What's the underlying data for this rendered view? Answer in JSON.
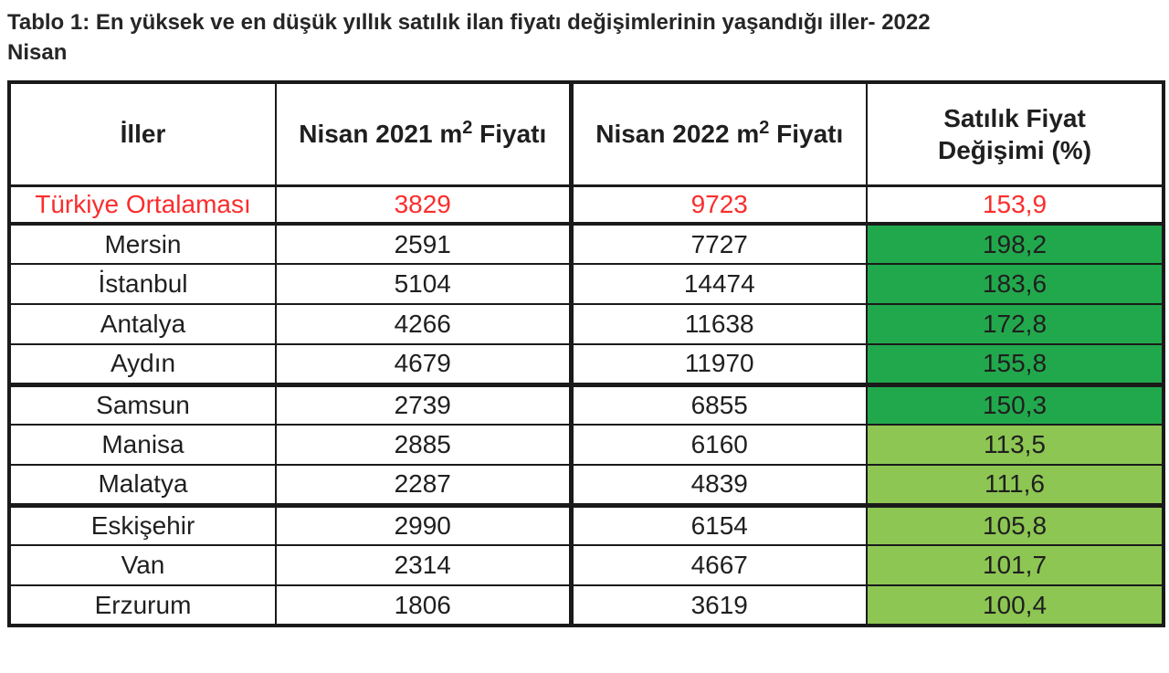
{
  "title": {
    "line1": "Tablo 1: En yüksek ve en düşük yıllık satılık ilan fiyatı değişimlerinin yaşandığı iller- 2022",
    "line2": "Nisan"
  },
  "colors": {
    "dark_green": "#22A84C",
    "light_green": "#8DC653",
    "red": "#FB2D2D",
    "text": "#1f1f1f",
    "border": "#1a1a1a"
  },
  "table": {
    "headers": {
      "iller": "İller",
      "col2021": {
        "prefix": "Nisan 2021 m",
        "sup": "2",
        "suffix": " Fiyatı"
      },
      "col2022": {
        "prefix": "Nisan 2022 m",
        "sup": "2",
        "suffix": " Fiyatı"
      },
      "change": "Satılık Fiyat Değişimi (%)"
    },
    "average_row": {
      "name": "Türkiye Ortalaması",
      "price_2021": "3829",
      "price_2022": "9723",
      "change": "153,9"
    },
    "rows": [
      {
        "name": "Mersin",
        "price_2021": "2591",
        "price_2022": "7727",
        "change": "198,2",
        "tone": "dark"
      },
      {
        "name": "İstanbul",
        "price_2021": "5104",
        "price_2022": "14474",
        "change": "183,6",
        "tone": "dark"
      },
      {
        "name": "Antalya",
        "price_2021": "4266",
        "price_2022": "11638",
        "change": "172,8",
        "tone": "dark"
      },
      {
        "name": "Aydın",
        "price_2021": "4679",
        "price_2022": "11970",
        "change": "155,8",
        "tone": "dark"
      },
      {
        "name": "Samsun",
        "price_2021": "2739",
        "price_2022": "6855",
        "change": "150,3",
        "tone": "dark"
      },
      {
        "name": "Manisa",
        "price_2021": "2885",
        "price_2022": "6160",
        "change": "113,5",
        "tone": "light"
      },
      {
        "name": "Malatya",
        "price_2021": "2287",
        "price_2022": "4839",
        "change": "111,6",
        "tone": "light"
      },
      {
        "name": "Eskişehir",
        "price_2021": "2990",
        "price_2022": "6154",
        "change": "105,8",
        "tone": "light"
      },
      {
        "name": "Van",
        "price_2021": "2314",
        "price_2022": "4667",
        "change": "101,7",
        "tone": "light"
      },
      {
        "name": "Erzurum",
        "price_2021": "1806",
        "price_2022": "3619",
        "change": "100,4",
        "tone": "light"
      }
    ]
  }
}
